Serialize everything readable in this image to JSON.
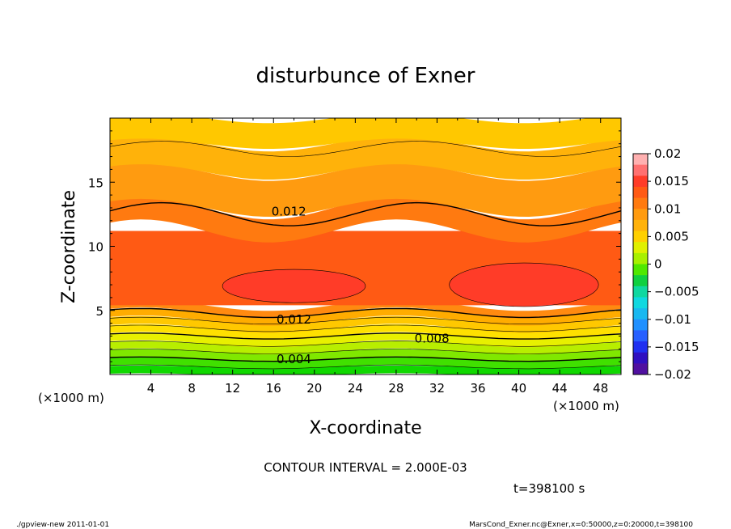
{
  "chart_data": {
    "type": "contour",
    "title": "disturbunce of Exner",
    "xlabel": "X-coordinate",
    "ylabel": "Z-coordinate",
    "x_unit": "(×1000 m)",
    "xlim": [
      0,
      50
    ],
    "ylim": [
      0,
      20
    ],
    "xticks": [
      4,
      8,
      12,
      16,
      20,
      24,
      28,
      32,
      36,
      40,
      44,
      48
    ],
    "yticks": [
      5,
      10,
      15
    ],
    "contour_interval_text": "CONTOUR INTERVAL = 2.000E-03",
    "time_text": "t=398100 s",
    "contour_labels": [
      {
        "text": "0.012",
        "x": 17.5,
        "z": 12.7
      },
      {
        "text": "0.012",
        "x": 18.0,
        "z": 4.3
      },
      {
        "text": "0.008",
        "x": 31.5,
        "z": 2.8
      },
      {
        "text": "0.004",
        "x": 18.0,
        "z": 1.2
      }
    ],
    "colorbar": {
      "min": -0.02,
      "max": 0.02,
      "labels": [
        "0.02",
        "0.015",
        "0.01",
        "0.005",
        "0",
        "−0.005",
        "−0.01",
        "−0.015",
        "−0.02"
      ],
      "colors": [
        "#ffb0b0",
        "#ff7070",
        "#ff3c28",
        "#ff5a14",
        "#ff7a10",
        "#ff9b10",
        "#ffb20a",
        "#ffd000",
        "#e0f000",
        "#a8f000",
        "#50e800",
        "#10d040",
        "#10d8a0",
        "#10d8e0",
        "#18b8f0",
        "#2090ff",
        "#2860ff",
        "#2030f0",
        "#3010c0",
        "#5010a0"
      ]
    }
  },
  "footer": {
    "left": "./gpview-new   2011-01-01",
    "right": "MarsCond_Exner.nc@Exner,x=0:50000,z=0:20000,t=398100"
  }
}
